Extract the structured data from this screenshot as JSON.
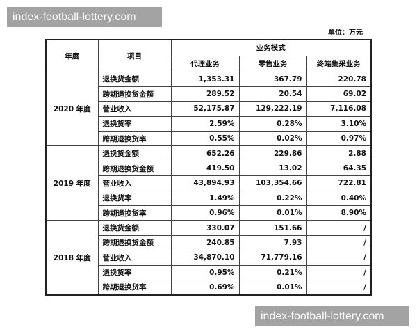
{
  "watermark": "index-football-lottery.com",
  "unit": "单位：万元",
  "header": {
    "year": "年度",
    "item": "项目",
    "mode": "业务模式",
    "columns": [
      "代理业务",
      "零售业务",
      "终端集采业务"
    ]
  },
  "groups": [
    {
      "year": "2020 年度",
      "rows": [
        {
          "item": "退换货金额",
          "values": [
            "1,353.31",
            "367.79",
            "220.78"
          ]
        },
        {
          "item": "跨期退换货金额",
          "values": [
            "289.52",
            "20.54",
            "69.02"
          ]
        },
        {
          "item": "营业收入",
          "values": [
            "52,175.87",
            "129,222.19",
            "7,116.08"
          ]
        },
        {
          "item": "退换货率",
          "values": [
            "2.59%",
            "0.28%",
            "3.10%"
          ]
        },
        {
          "item": "跨期退换货率",
          "values": [
            "0.55%",
            "0.02%",
            "0.97%"
          ]
        }
      ]
    },
    {
      "year": "2019 年度",
      "rows": [
        {
          "item": "退换货金额",
          "values": [
            "652.26",
            "229.86",
            "2.88"
          ]
        },
        {
          "item": "跨期退换货金额",
          "values": [
            "419.50",
            "13.02",
            "64.35"
          ]
        },
        {
          "item": "营业收入",
          "values": [
            "43,894.93",
            "103,354.66",
            "722.81"
          ]
        },
        {
          "item": "退换货率",
          "values": [
            "1.49%",
            "0.22%",
            "0.40%"
          ]
        },
        {
          "item": "跨期退换货率",
          "values": [
            "0.96%",
            "0.01%",
            "8.90%"
          ]
        }
      ]
    },
    {
      "year": "2018 年度",
      "rows": [
        {
          "item": "退换货金额",
          "values": [
            "330.07",
            "151.66",
            "/"
          ]
        },
        {
          "item": "跨期退换货金额",
          "values": [
            "240.85",
            "7.93",
            "/"
          ]
        },
        {
          "item": "营业收入",
          "values": [
            "34,870.10",
            "71,779.16",
            "/"
          ]
        },
        {
          "item": "退换货率",
          "values": [
            "0.95%",
            "0.21%",
            "/"
          ]
        },
        {
          "item": "跨期退换货率",
          "values": [
            "0.69%",
            "0.01%",
            "/"
          ]
        }
      ]
    }
  ]
}
